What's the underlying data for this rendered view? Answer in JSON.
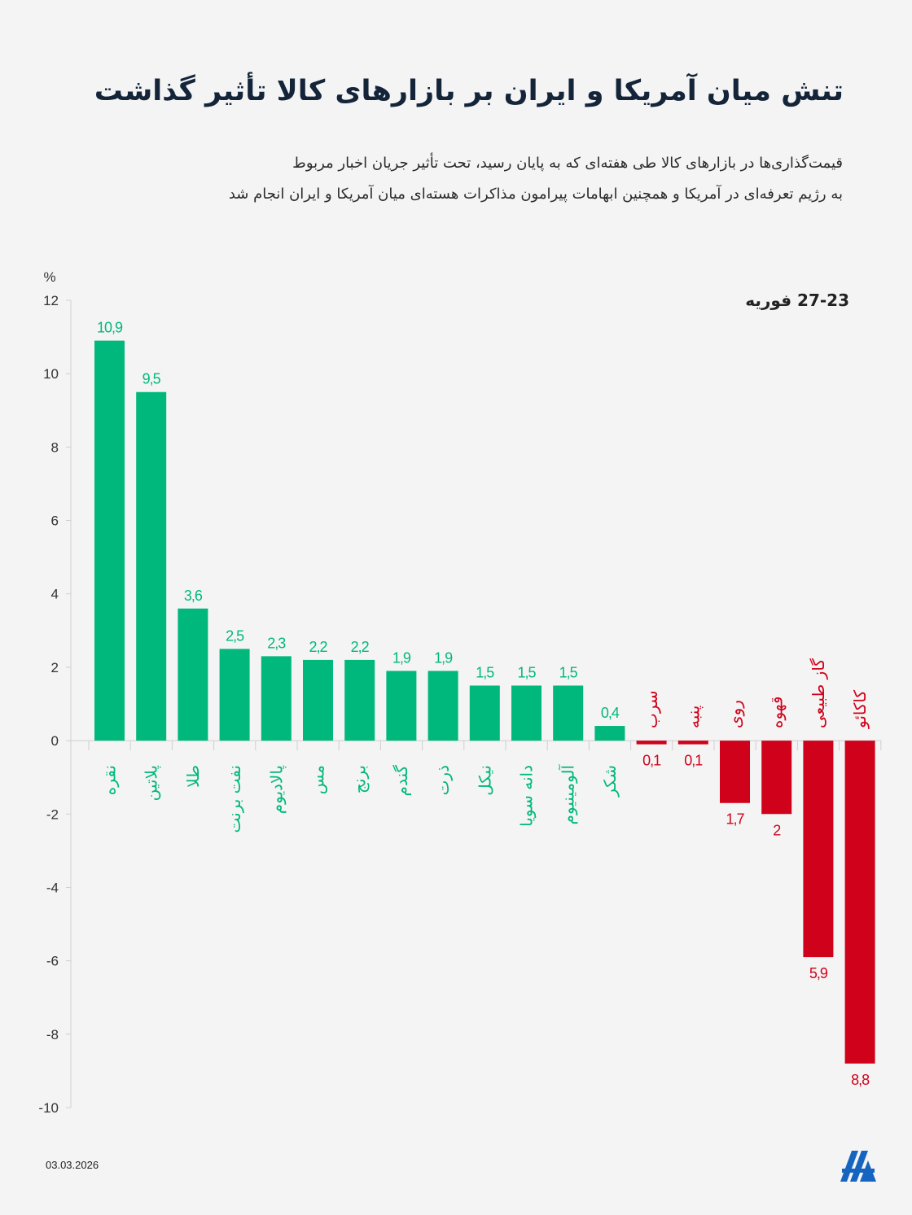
{
  "title": "تنش میان آمریکا و ایران بر بازارهای کالا تأثیر گذاشت",
  "subtitle_lines": [
    "قیمت‌گذاری‌ها در بازارهای کالا طی هفته‌ای که به پایان رسید، تحت تأثیر جریان اخبار مربوط",
    "به رژیم تعرفه‌ای در آمریکا و همچنین ابهامات پیرامون مذاکرات هسته‌ای میان آمریکا و ایران انجام شد"
  ],
  "period": "27-23  فوریه",
  "date": "03.03.2026",
  "logo_text": "AA",
  "colors": {
    "positive": "#00b87c",
    "negative": "#d0021b",
    "background": "#f4f4f4"
  },
  "chart_data": {
    "type": "bar",
    "ylabel": "%",
    "ylim": [
      -10,
      12
    ],
    "yticks": [
      12,
      10,
      8,
      6,
      4,
      2,
      0,
      -2,
      -4,
      -6,
      -8,
      -10
    ],
    "grid": false,
    "categories": [
      "نقره",
      "پلاتین",
      "طلا",
      "نفت برنت",
      "پالادیوم",
      "مس",
      "برنج",
      "گندم",
      "ذرت",
      "نیکل",
      "دانه سویا",
      "آلومینیوم",
      "شکر",
      "سرب",
      "پنبه",
      "روی",
      "قهوه",
      "گاز طبیعی",
      "کاکائو"
    ],
    "values": [
      10.9,
      9.5,
      3.6,
      2.5,
      2.3,
      2.2,
      2.2,
      1.9,
      1.9,
      1.5,
      1.5,
      1.5,
      0.4,
      -0.1,
      -0.1,
      -1.7,
      -2,
      -5.9,
      -8.8
    ],
    "value_labels": [
      "10,9",
      "9,5",
      "3,6",
      "2,5",
      "2,3",
      "2,2",
      "2,2",
      "1,9",
      "1,9",
      "1,5",
      "1,5",
      "1,5",
      "0,4",
      "0,1",
      "0,1",
      "1,7",
      "2",
      "5,9",
      "8,8"
    ]
  }
}
